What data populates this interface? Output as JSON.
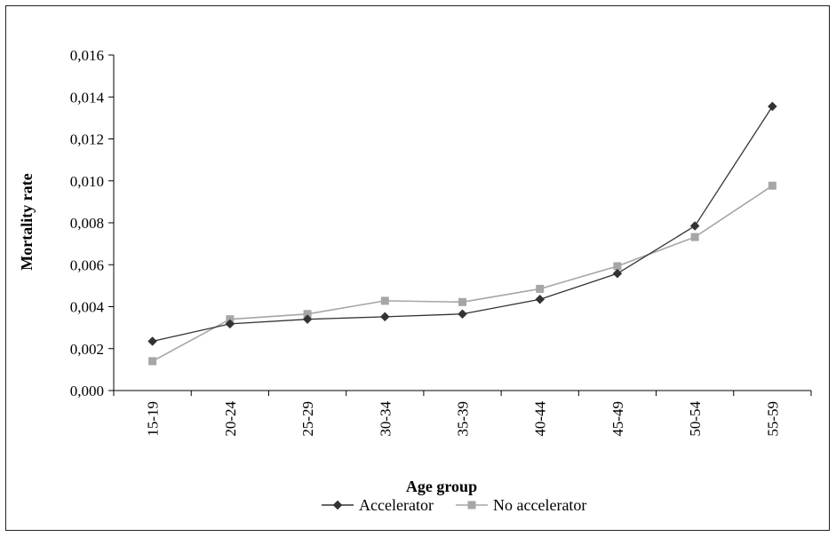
{
  "chart_data": {
    "type": "line",
    "title": "",
    "xlabel": "Age group",
    "ylabel": "Mortality rate",
    "categories": [
      "15-19",
      "20-24",
      "25-29",
      "30-34",
      "35-39",
      "40-44",
      "45-49",
      "50-54",
      "55-59"
    ],
    "ylim": [
      0,
      0.016
    ],
    "yticks": [
      "0,000",
      "0,002",
      "0,004",
      "0,006",
      "0,008",
      "0,010",
      "0,012",
      "0,014",
      "0,016"
    ],
    "grid": false,
    "legend_position": "bottom",
    "series": [
      {
        "name": "Accelerator",
        "marker": "diamond",
        "color": "#333333",
        "values": [
          0.00235,
          0.00318,
          0.0034,
          0.00352,
          0.00365,
          0.00435,
          0.00558,
          0.00785,
          0.01355
        ]
      },
      {
        "name": "No accelerator",
        "marker": "square",
        "color": "#a6a6a6",
        "values": [
          0.0014,
          0.0034,
          0.00365,
          0.00428,
          0.00422,
          0.00485,
          0.00593,
          0.00732,
          0.00977
        ]
      }
    ]
  }
}
